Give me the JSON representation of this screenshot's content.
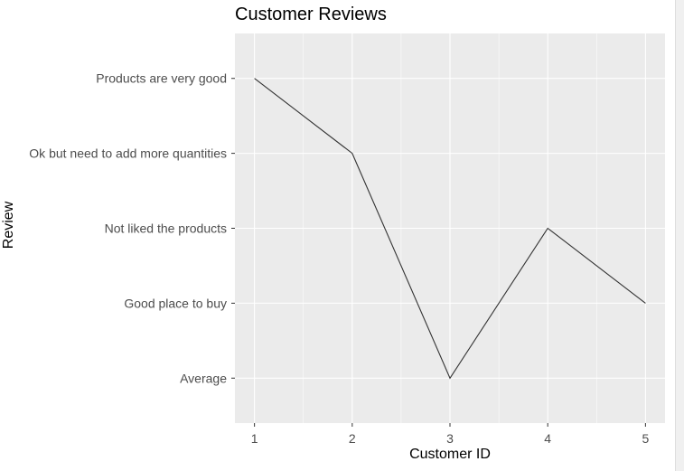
{
  "chart_data": {
    "type": "line",
    "title": "Customer Reviews",
    "xlabel": "Customer ID",
    "ylabel": "Review",
    "x": [
      1,
      2,
      3,
      4,
      5
    ],
    "x_ticks": [
      "1",
      "2",
      "3",
      "4",
      "5"
    ],
    "xlim": [
      0.8,
      5.2
    ],
    "y_categories": [
      "Average",
      "Good place to buy",
      "Not liked the products",
      "Ok but need to add more quantities",
      "Products are very good"
    ],
    "y": [
      "Products are very good",
      "Ok but need to add more quantities",
      "Average",
      "Not liked the products",
      "Good place to buy"
    ],
    "grid": true,
    "legend": "none",
    "colors": {
      "panel": "#ebebeb",
      "grid_major": "#ffffff",
      "line": "#333333",
      "tick_text": "#4d4d4d"
    }
  }
}
